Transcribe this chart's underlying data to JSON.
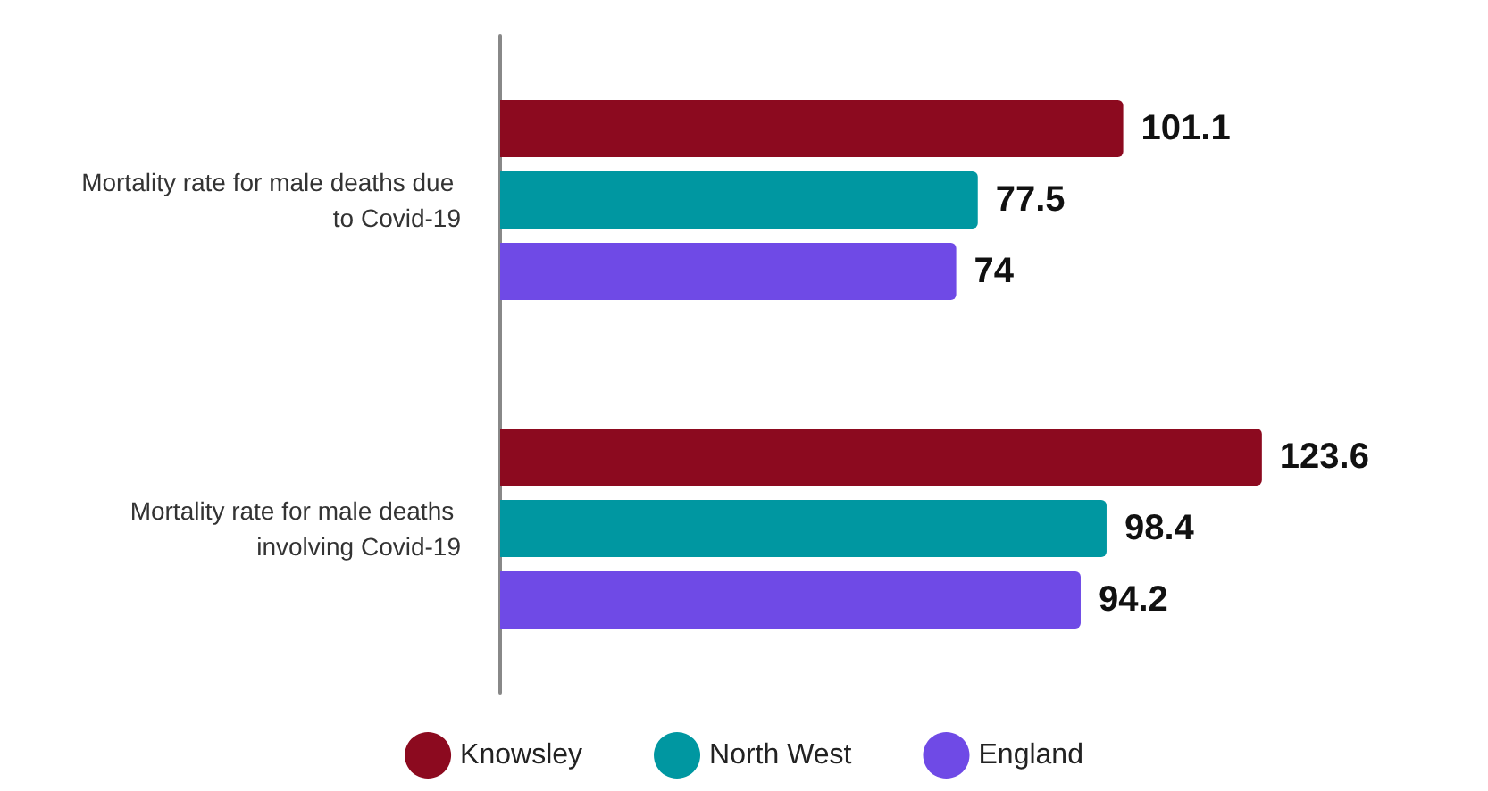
{
  "chart_data": {
    "type": "bar",
    "orientation": "horizontal",
    "categories": [
      "Mortality rate for male deaths due to Covid-19",
      "Mortality rate for male deaths involving Covid-19"
    ],
    "series": [
      {
        "name": "Knowsley",
        "color": "#8c0a1f",
        "values": [
          101.1,
          123.6
        ]
      },
      {
        "name": "North West",
        "color": "#0097a1",
        "values": [
          77.5,
          98.4
        ]
      },
      {
        "name": "England",
        "color": "#6f4ae6",
        "values": [
          74,
          94.2
        ]
      }
    ],
    "data_labels": true,
    "legend": "bottom",
    "grid": false,
    "tick_labels": "y"
  }
}
